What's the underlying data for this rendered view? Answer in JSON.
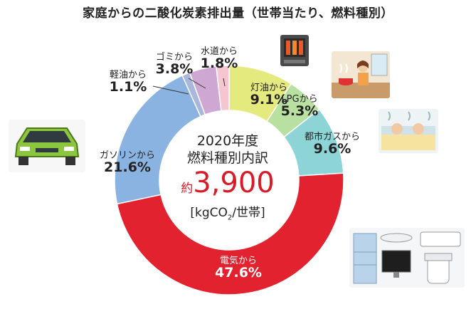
{
  "title": "家庭からの二酸化炭素排出量（世帯当たり、燃料種別）",
  "center": {
    "line1": "2020年度",
    "line2": "燃料種別内訳",
    "prefix": "約",
    "total": "3,900",
    "unit_open": "[kgCO",
    "unit_sub": "2",
    "unit_close": "/世帯]"
  },
  "chart_data": {
    "type": "pie",
    "title": "家庭からの二酸化炭素排出量（世帯当たり、燃料種別）",
    "unit": "%",
    "slices": [
      {
        "name": "灯油から",
        "value": 9.1,
        "value_label": "9.1%",
        "color": "#e4ea7e"
      },
      {
        "name": "LPGから",
        "value": 5.3,
        "value_label": "5.3%",
        "color": "#b8e0a0"
      },
      {
        "name": "都市ガスから",
        "value": 9.6,
        "value_label": "9.6%",
        "color": "#8dd4d6"
      },
      {
        "name": "電気から",
        "value": 47.6,
        "value_label": "47.6%",
        "color": "#e2222f"
      },
      {
        "name": "ガソリンから",
        "value": 21.6,
        "value_label": "21.6%",
        "color": "#8ab3e2"
      },
      {
        "name": "軽油から",
        "value": 1.1,
        "value_label": "1.1%",
        "color": "#a9b7dd"
      },
      {
        "name": "ゴミから",
        "value": 3.8,
        "value_label": "3.8%",
        "color": "#cfa7d3"
      },
      {
        "name": "水道から",
        "value": 1.8,
        "value_label": "1.8%",
        "color": "#f5c6cf"
      }
    ]
  },
  "illustrations": [
    "stove-icon",
    "cooking-scene-icon",
    "bath-scene-icon",
    "car-icon",
    "appliances-icon"
  ]
}
